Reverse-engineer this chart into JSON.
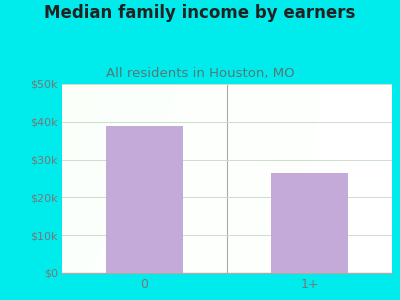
{
  "title": "Median family income by earners",
  "subtitle": "All residents in Houston, MO",
  "categories": [
    "0",
    "1+"
  ],
  "values": [
    39000,
    26500
  ],
  "bar_color": "#c4aad8",
  "background_outer": "#00ecec",
  "ylim": [
    0,
    50000
  ],
  "yticks": [
    0,
    10000,
    20000,
    30000,
    40000,
    50000
  ],
  "ytick_labels": [
    "$0",
    "$10k",
    "$20k",
    "$30k",
    "$40k",
    "$50k"
  ],
  "title_fontsize": 12,
  "subtitle_fontsize": 9.5,
  "title_color": "#222222",
  "subtitle_color": "#557777",
  "tick_color": "#777777",
  "grid_color": "#ccddcc",
  "divider_color": "#aaaaaa"
}
